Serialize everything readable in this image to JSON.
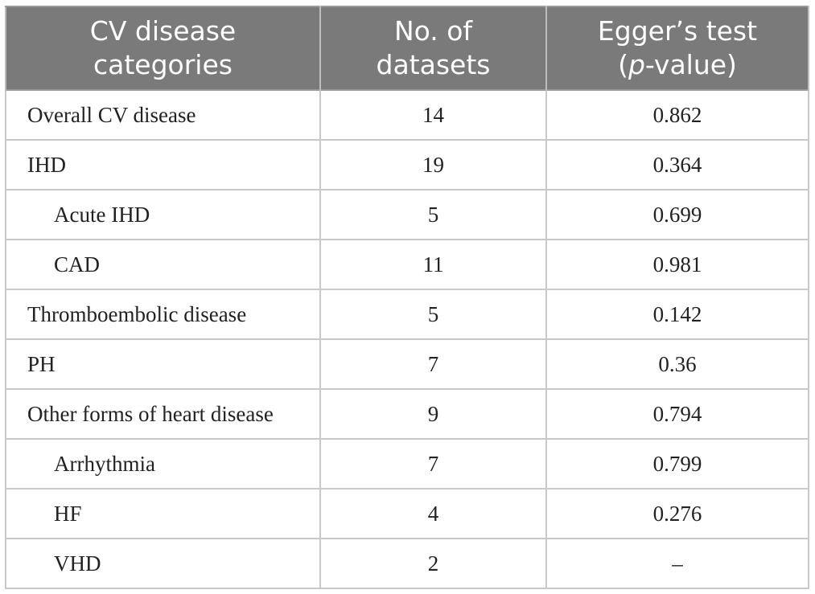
{
  "table": {
    "headers": [
      {
        "line1": "CV disease",
        "line2_pre": "categories",
        "line2_ital": "",
        "line2_post": ""
      },
      {
        "line1": "No. of",
        "line2_pre": "datasets",
        "line2_ital": "",
        "line2_post": ""
      },
      {
        "line1": "Egger’s test",
        "line2_pre": "(",
        "line2_ital": "p",
        "line2_post": "-value)"
      }
    ],
    "rows": [
      {
        "category": "Overall CV disease",
        "datasets": "14",
        "pvalue": "0.862"
      },
      {
        "category": "IHD",
        "datasets": "19",
        "pvalue": "0.364"
      },
      {
        "category": "Acute IHD",
        "datasets": "5",
        "pvalue": "0.699"
      },
      {
        "category": "CAD",
        "datasets": "11",
        "pvalue": "0.981"
      },
      {
        "category": "Thromboembolic disease",
        "datasets": "5",
        "pvalue": "0.142"
      },
      {
        "category": "PH",
        "datasets": "7",
        "pvalue": "0.36"
      },
      {
        "category": "Other forms of heart disease",
        "datasets": "9",
        "pvalue": "0.794"
      },
      {
        "category": "Arrhythmia",
        "datasets": "7",
        "pvalue": "0.799"
      },
      {
        "category": "HF",
        "datasets": "4",
        "pvalue": "0.276"
      },
      {
        "category": "VHD",
        "datasets": "2",
        "pvalue": "–"
      }
    ]
  },
  "colors": {
    "header_bg": "#7a7a7a",
    "header_text": "#ffffff",
    "grid": "#c9c9c9",
    "body_text": "#222222"
  }
}
